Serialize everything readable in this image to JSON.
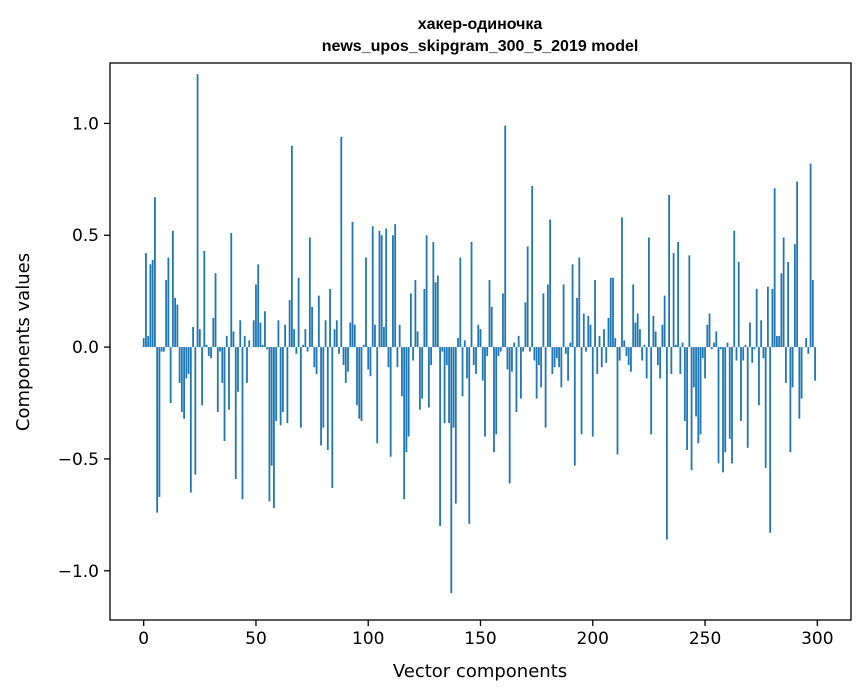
{
  "chart_data": {
    "type": "bar",
    "title": "хакер-одиночка",
    "subtitle": "news_upos_skipgram_300_5_2019 model",
    "xlabel": "Vector components",
    "ylabel": "Components values",
    "xlim": [
      -15,
      315
    ],
    "ylim": [
      -1.22,
      1.27
    ],
    "xticks": [
      0,
      50,
      100,
      150,
      200,
      250,
      300
    ],
    "xtick_labels": [
      "0",
      "50",
      "100",
      "150",
      "200",
      "250",
      "300"
    ],
    "yticks": [
      -1.0,
      -0.5,
      0.0,
      0.5,
      1.0
    ],
    "ytick_labels": [
      "−1.0",
      "−0.5",
      "0.0",
      "0.5",
      "1.0"
    ],
    "bar_color": "#1f77b4",
    "grid": false,
    "values": [
      0.04,
      0.42,
      0.05,
      0.37,
      0.39,
      0.67,
      -0.74,
      -0.67,
      -0.02,
      -0.02,
      0.3,
      0.4,
      -0.25,
      0.52,
      0.22,
      0.19,
      -0.16,
      -0.29,
      -0.32,
      -0.14,
      -0.12,
      -0.65,
      0.09,
      -0.57,
      1.22,
      0.08,
      -0.26,
      0.43,
      0.01,
      -0.04,
      -0.05,
      0.13,
      0.33,
      -0.29,
      -0.02,
      -0.16,
      -0.42,
      0.05,
      -0.28,
      0.51,
      0.07,
      -0.59,
      -0.2,
      0.12,
      -0.68,
      0.05,
      -0.16,
      0.03,
      0.0,
      0.12,
      0.28,
      0.37,
      0.11,
      0.01,
      0.16,
      -0.01,
      -0.69,
      -0.53,
      -0.72,
      -0.33,
      0.12,
      -0.35,
      -0.29,
      0.1,
      -0.34,
      0.21,
      0.9,
      0.08,
      -0.03,
      0.31,
      -0.36,
      0.01,
      0.08,
      -0.02,
      0.49,
      0.18,
      -0.09,
      -0.12,
      0.23,
      -0.44,
      -0.36,
      0.12,
      -0.46,
      0.26,
      -0.63,
      0.08,
      0.12,
      -0.03,
      0.94,
      -0.08,
      -0.16,
      -0.11,
      0.11,
      0.56,
      0.1,
      -0.26,
      -0.32,
      -0.33,
      0.01,
      0.4,
      -0.1,
      -0.13,
      0.54,
      0.1,
      -0.43,
      0.52,
      0.5,
      0.09,
      0.53,
      -0.09,
      -0.49,
      0.5,
      0.55,
      -0.09,
      0.1,
      -0.22,
      -0.68,
      -0.47,
      -0.4,
      0.24,
      -0.06,
      0.3,
      0.07,
      -0.28,
      -0.23,
      0.26,
      0.5,
      -0.27,
      -0.08,
      0.47,
      0.29,
      0.32,
      -0.8,
      -0.02,
      -0.34,
      -0.08,
      -0.34,
      -1.1,
      -0.36,
      -0.7,
      0.04,
      0.4,
      -0.22,
      0.03,
      -0.14,
      -0.79,
      0.47,
      -0.08,
      -0.12,
      0.1,
      0.08,
      -0.15,
      -0.4,
      -0.04,
      0.3,
      0.18,
      -0.47,
      -0.39,
      -0.04,
      -0.02,
      0.24,
      0.99,
      -0.1,
      -0.61,
      -0.11,
      0.02,
      -0.29,
      0.05,
      -0.23,
      -0.02,
      0.2,
      0.45,
      -0.02,
      0.72,
      -0.06,
      -0.23,
      -0.08,
      -0.18,
      0.24,
      -0.36,
      0.28,
      0.57,
      -0.12,
      -0.09,
      -0.05,
      -0.09,
      -0.18,
      0.28,
      -0.03,
      -0.15,
      0.02,
      0.37,
      -0.53,
      0.22,
      0.4,
      -0.39,
      0.15,
      -0.02,
      0.14,
      0.1,
      -0.4,
      0.3,
      -0.12,
      0.05,
      -0.09,
      0.08,
      -0.07,
      0.13,
      0.31,
      0.31,
      0.04,
      -0.48,
      -0.06,
      0.58,
      0.03,
      -0.04,
      -0.08,
      -0.11,
      0.28,
      0.11,
      0.15,
      0.08,
      -0.06,
      0.01,
      -0.14,
      0.49,
      -0.39,
      0.14,
      0.07,
      -0.08,
      -0.14,
      0.1,
      0.23,
      -0.86,
      0.68,
      -0.12,
      0.42,
      0.01,
      0.47,
      -0.12,
      0.02,
      -0.33,
      -0.46,
      0.41,
      -0.55,
      -0.18,
      -0.31,
      -0.43,
      -0.39,
      -0.05,
      -0.14,
      0.1,
      0.15,
      -0.01,
      0.02,
      0.07,
      -0.52,
      -0.01,
      -0.56,
      -0.47,
      0.02,
      -0.41,
      -0.52,
      0.52,
      -0.06,
      0.38,
      -0.33,
      -0.06,
      0.01,
      -0.45,
      0.11,
      -0.07,
      -0.01,
      0.26,
      -0.26,
      0.12,
      -0.05,
      -0.54,
      0.27,
      -0.83,
      0.26,
      0.71,
      0.05,
      0.05,
      0.33,
      0.49,
      -0.16,
      0.38,
      -0.47,
      -0.18,
      0.46,
      0.74,
      -0.32,
      -0.23,
      0.0,
      0.04,
      -0.03,
      0.82,
      0.3,
      -0.15
    ]
  }
}
